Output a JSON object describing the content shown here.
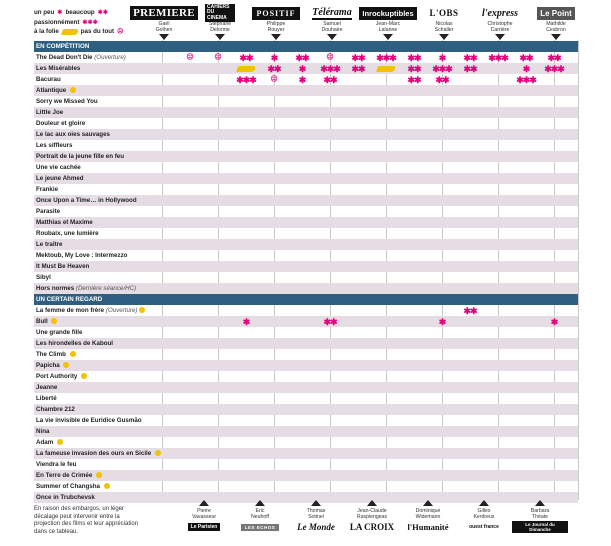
{
  "legend": {
    "un_peu": "un peu",
    "beaucoup": "beaucoup",
    "passionnement": "passionnément",
    "a_la_folie": "à la folie",
    "pas_du_tout": "pas du tout",
    "star": "✱",
    "stars2": "✱✱",
    "stars3": "✱✱✱",
    "sad_face": "☹"
  },
  "critics": [
    {
      "logo": "PREMIERE",
      "name": "Gaël\nGolhen"
    },
    {
      "logo": "CAHIERS DU CINEMA",
      "name": "Stéphane\nDelorme"
    },
    {
      "logo": "POSITIF",
      "name": "Philippe\nRouyer"
    },
    {
      "logo": "Télérama",
      "name": "Samuel\nDouhaire"
    },
    {
      "logo": "Inrockuptibles",
      "name": "Jean-Marc\nLalanne"
    },
    {
      "logo": "L'OBS",
      "name": "Nicolas\nSchaller"
    },
    {
      "logo": "l'express",
      "name": "Christophe\nCarrière"
    },
    {
      "logo": "Le Point",
      "name": "Mathilde\nCesbron"
    }
  ],
  "sections": {
    "competition": "EN COMPÉTITION",
    "certain_regard": "UN CERTAIN REGARD"
  },
  "competition_films": [
    {
      "title": "The Dead Don't Die",
      "sub": "(Ouverture)",
      "ratings": [
        "sad",
        "sad",
        "**",
        "*",
        "**",
        "sad",
        "**",
        "***",
        "**",
        "*",
        "**",
        "***",
        "**",
        "**"
      ]
    },
    {
      "title": "Les Misérables",
      "ratings": [
        "",
        "",
        "palme",
        "**",
        "*",
        "***",
        "**",
        "palme",
        "**",
        "***",
        "**",
        "",
        "*",
        "***"
      ]
    },
    {
      "title": "Bacurau",
      "ratings": [
        "",
        "",
        "***",
        "sad",
        "*",
        "**",
        "",
        "",
        "**",
        "**",
        "",
        "",
        "***",
        ""
      ]
    },
    {
      "title": "Atlantique",
      "palm": true,
      "ratings": []
    },
    {
      "title": "Sorry we Missed You",
      "ratings": []
    },
    {
      "title": "Little Joe",
      "ratings": []
    },
    {
      "title": "Douleur et gloire",
      "ratings": []
    },
    {
      "title": "Le lac aux oies sauvages",
      "ratings": []
    },
    {
      "title": "Les siffleurs",
      "ratings": []
    },
    {
      "title": "Portrait de la jeune fille en feu",
      "ratings": []
    },
    {
      "title": "Une vie cachée",
      "ratings": []
    },
    {
      "title": "Le jeune Ahmed",
      "ratings": []
    },
    {
      "title": "Frankie",
      "ratings": []
    },
    {
      "title": "Once Upon a Time… in Hollywood",
      "ratings": []
    },
    {
      "title": "Parasite",
      "ratings": []
    },
    {
      "title": "Matthias et Maxime",
      "ratings": []
    },
    {
      "title": "Roubaix, une lumière",
      "ratings": []
    },
    {
      "title": "Le traître",
      "ratings": []
    },
    {
      "title": "Mektoub, My Love : Intermezzo",
      "ratings": []
    },
    {
      "title": "It Must Be Heaven",
      "ratings": []
    },
    {
      "title": "Sibyl",
      "ratings": []
    },
    {
      "title": "Hors normes",
      "sub": "(Dernière séance/HC)",
      "ratings": []
    }
  ],
  "regard_films": [
    {
      "title": "La femme de mon frère",
      "sub": "(Ouverture)",
      "palm": true,
      "ratings": [
        "",
        "",
        "",
        "",
        "",
        "",
        "",
        "",
        "",
        "",
        "**",
        "",
        "",
        ""
      ]
    },
    {
      "title": "Bull",
      "palm": true,
      "ratings": [
        "",
        "",
        "*",
        "",
        "",
        "**",
        "",
        "",
        "",
        "*",
        "",
        "",
        "",
        "*"
      ]
    },
    {
      "title": "Une grande fille",
      "ratings": []
    },
    {
      "title": "Les hirondelles de Kaboul",
      "ratings": []
    },
    {
      "title": "The Climb",
      "palm": true,
      "ratings": []
    },
    {
      "title": "Papicha",
      "palm": true,
      "ratings": []
    },
    {
      "title": "Port Authority",
      "palm": true,
      "ratings": []
    },
    {
      "title": "Jeanne",
      "ratings": []
    },
    {
      "title": "Liberté",
      "ratings": []
    },
    {
      "title": "Chambre 212",
      "ratings": []
    },
    {
      "title": "La vie invisible de Euridice Gusmão",
      "ratings": []
    },
    {
      "title": "Nina",
      "ratings": []
    },
    {
      "title": "Adam",
      "palm": true,
      "ratings": []
    },
    {
      "title": "La fameuse invasion des ours en Sicile",
      "palm": true,
      "ratings": []
    },
    {
      "title": "Viendra le feu",
      "ratings": []
    },
    {
      "title": "En Terre de Crimée",
      "palm": true,
      "ratings": []
    },
    {
      "title": "Summer of Changsha",
      "palm": true,
      "ratings": []
    },
    {
      "title": "Once in Trubchevsk",
      "ratings": []
    }
  ],
  "footer": {
    "note": "En raison des embargos, un léger décalage peut intervenir entre la projection des films et leur appréciation dans ce tableau.",
    "critics": [
      {
        "name": "Pierre\nVavasseur",
        "logo": "Le Parisien"
      },
      {
        "name": "Eric\nNeuhoff",
        "logo": "LES ECHOS"
      },
      {
        "name": "Thomas\nSotinel",
        "logo": "Le Monde"
      },
      {
        "name": "Jean-Claude\nRaspiengeas",
        "logo": "LA CROIX"
      },
      {
        "name": "Dominique\nWidemann",
        "logo": "l'Humanité"
      },
      {
        "name": "Gilles\nKerdreux",
        "logo": "ouest france"
      },
      {
        "name": "Barbara\nThéate",
        "logo": "Le Journal du Dimanche"
      }
    ]
  },
  "colors": {
    "accent": "#e6007e",
    "section_bg": "#2f5f80",
    "shade": "#e5dde3",
    "palme": "#f2c200"
  }
}
